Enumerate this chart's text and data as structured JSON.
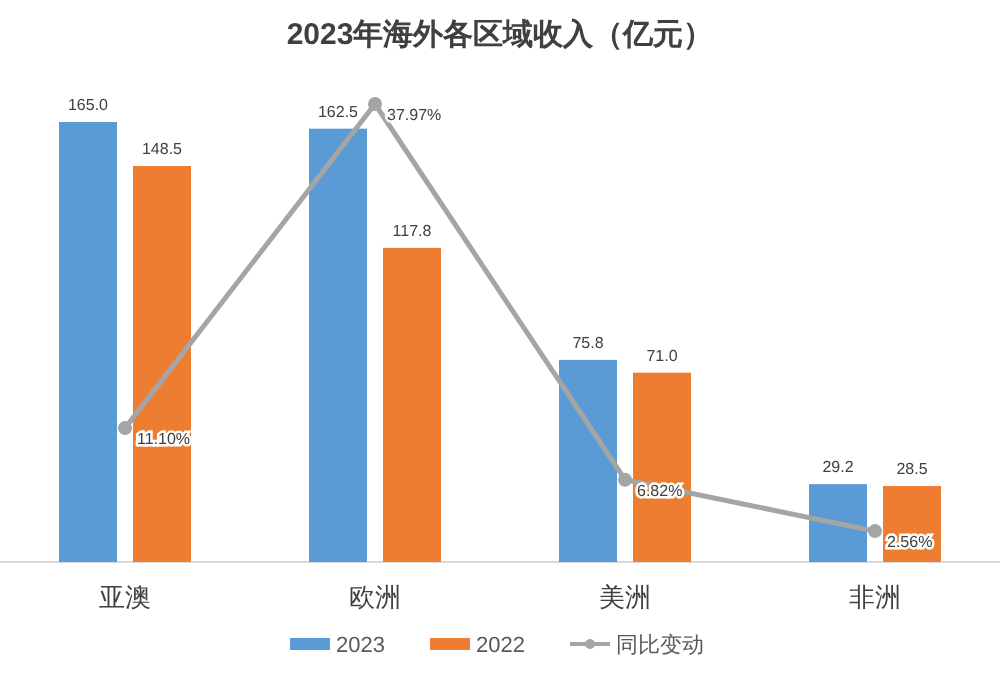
{
  "chart_data": {
    "type": "bar",
    "title": "2023年海外各区域收入（亿元）",
    "categories": [
      "亚澳",
      "欧洲",
      "美洲",
      "非洲"
    ],
    "tick_labels": "x",
    "legend": "bottom",
    "marker": "circle",
    "series": [
      {
        "name": "2023",
        "color": "#5b9bd5",
        "values": [
          165.0,
          162.5,
          75.8,
          29.2
        ],
        "value_labels": [
          "165.0",
          "162.5",
          "75.8",
          "29.2"
        ]
      },
      {
        "name": "2022",
        "color": "#ed7d31",
        "values": [
          148.5,
          117.8,
          71.0,
          28.5
        ],
        "value_labels": [
          "148.5",
          "117.8",
          "71.0",
          "28.5"
        ]
      },
      {
        "name": "同比变动",
        "type": "line",
        "axis": "y2",
        "color": "#a5a5a5",
        "values": [
          11.1,
          37.97,
          6.82,
          2.56
        ],
        "value_labels": [
          "11.10%",
          "37.97%",
          "6.82%",
          "2.56%"
        ]
      }
    ]
  }
}
